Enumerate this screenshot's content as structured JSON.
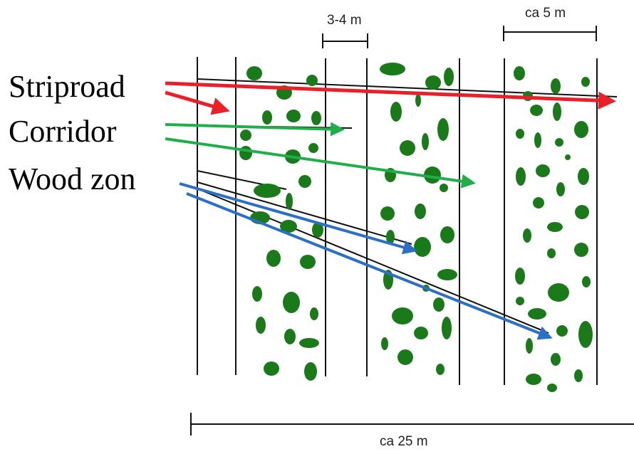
{
  "labels": {
    "striproad": "Striproad",
    "corridor": "Corridor",
    "wood_zone": "Wood zon"
  },
  "dimensions": {
    "corridor_width": "3-4 m",
    "wood_zone_width": "ca 5 m",
    "total_width": "ca 25 m"
  },
  "colors": {
    "striproad": "#e8202a",
    "corridor": "#1eae4a",
    "wood_zone": "#2b6fc6",
    "tree": "#1a7a1a",
    "line": "#111111"
  }
}
